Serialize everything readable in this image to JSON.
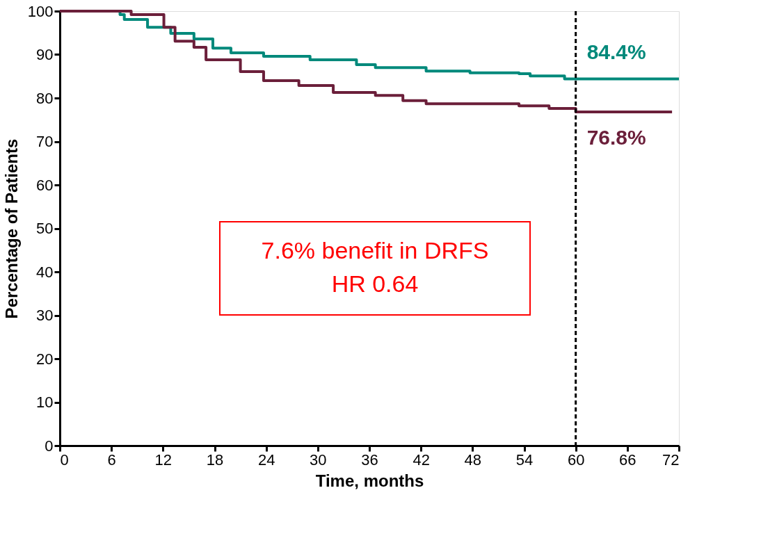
{
  "chart_data": {
    "type": "step",
    "xlabel": "Time, months",
    "ylabel": "Percentage of Patients",
    "xlim": [
      0,
      72
    ],
    "xticks": [
      0,
      6,
      12,
      18,
      24,
      30,
      36,
      42,
      48,
      54,
      60,
      66,
      72
    ],
    "ylim": [
      0,
      100
    ],
    "yticks": [
      0,
      10,
      20,
      30,
      40,
      50,
      60,
      70,
      80,
      90,
      100
    ],
    "grid": false,
    "line_style": "solid",
    "series": [
      {
        "color": "#00897b",
        "x": [
          0,
          3.5,
          7.0,
          7.5,
          10.2,
          12.9,
          15.6,
          17.8,
          19.9,
          23.7,
          29.1,
          34.5,
          36.7,
          42.6,
          47.7,
          53.4,
          54.7,
          58.7,
          72
        ],
        "values": [
          100,
          100,
          99.2,
          98.1,
          96.3,
          94.9,
          93.6,
          91.5,
          90.4,
          89.6,
          88.8,
          87.7,
          87.0,
          86.2,
          85.8,
          85.6,
          85.1,
          84.4,
          84.4
        ]
      },
      {
        "color": "#6b1f3a",
        "x": [
          0,
          3.5,
          8.3,
          12.1,
          13.4,
          15.6,
          17.0,
          21.0,
          23.7,
          27.8,
          31.8,
          36.7,
          39.9,
          42.6,
          53.4,
          56.9,
          60,
          63.9,
          71.2
        ],
        "values": [
          100,
          100,
          99.2,
          96.3,
          93.1,
          91.7,
          88.8,
          86.1,
          84.0,
          82.9,
          81.3,
          80.6,
          79.4,
          78.7,
          78.2,
          77.6,
          76.8,
          76.8,
          76.8
        ]
      }
    ],
    "ref_lines": [
      {
        "axis": "x",
        "value": 60,
        "color": "#000000",
        "line_style": "dashed"
      }
    ],
    "annotations": [
      {
        "text": "84.4%",
        "x": 60,
        "y": 84.4
      },
      {
        "text": "76.8%",
        "x": 60,
        "y": 76.8
      },
      "7.6% benefit in DRFS\nHR 0.64"
    ]
  }
}
